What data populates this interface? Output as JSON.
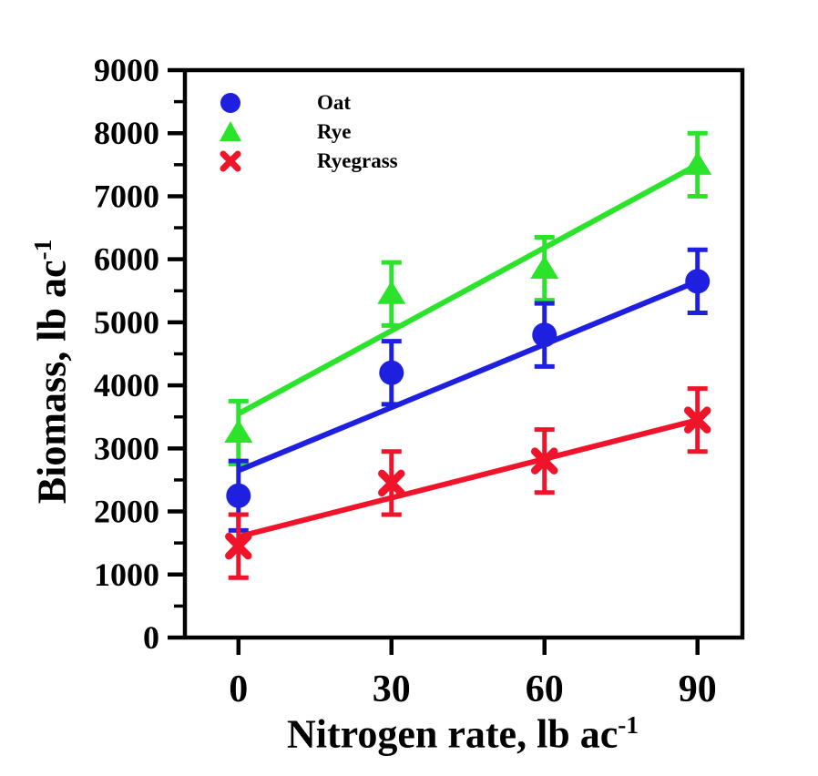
{
  "figure": {
    "background": "#ffffff"
  },
  "legend": {
    "items": [
      {
        "label": "Oat",
        "marker": "circle",
        "color": "#1f1fe0"
      },
      {
        "label": "Rye",
        "marker": "triangle",
        "color": "#2be32b"
      },
      {
        "label": "Ryegrass",
        "marker": "x",
        "color": "#f0142b"
      }
    ]
  },
  "chart_data": {
    "type": "scatter",
    "title": "",
    "xlabel_base": "Nitrogen rate, lb ac",
    "xlabel_sup": "-1",
    "ylabel_base": "Biomass, lb ac",
    "ylabel_sup": "-1",
    "x": [
      0,
      30,
      60,
      90
    ],
    "x_tick_labels": [
      "0",
      "30",
      "60",
      "90"
    ],
    "y_tick_labels": [
      "0",
      "1000",
      "2000",
      "3000",
      "4000",
      "5000",
      "6000",
      "7000",
      "8000",
      "9000"
    ],
    "axis": {
      "x": {
        "min": -10.5,
        "max": 98.8
      },
      "y": {
        "min": 0,
        "max": 9000,
        "major_step": 1000,
        "minor_step": 500
      }
    },
    "grid": false,
    "legend_position": "upper-left-inside",
    "series": [
      {
        "name": "Rye",
        "marker": "triangle",
        "color": "#2be32b",
        "values": [
          3250,
          5450,
          5850,
          7500
        ],
        "error": [
          500,
          500,
          500,
          500
        ],
        "trend": {
          "x": [
            0,
            90
          ],
          "y": [
            3550,
            7500
          ]
        }
      },
      {
        "name": "Oat",
        "marker": "circle",
        "color": "#1f1fe0",
        "values": [
          2250,
          4200,
          4800,
          5650
        ],
        "error": [
          550,
          500,
          500,
          500
        ],
        "trend": {
          "x": [
            0,
            90
          ],
          "y": [
            2650,
            5650
          ]
        }
      },
      {
        "name": "Ryegrass",
        "marker": "x",
        "color": "#f0142b",
        "values": [
          1450,
          2450,
          2800,
          3450
        ],
        "error": [
          500,
          500,
          500,
          500
        ],
        "trend": {
          "x": [
            0,
            90
          ],
          "y": [
            1600,
            3450
          ]
        }
      }
    ]
  }
}
